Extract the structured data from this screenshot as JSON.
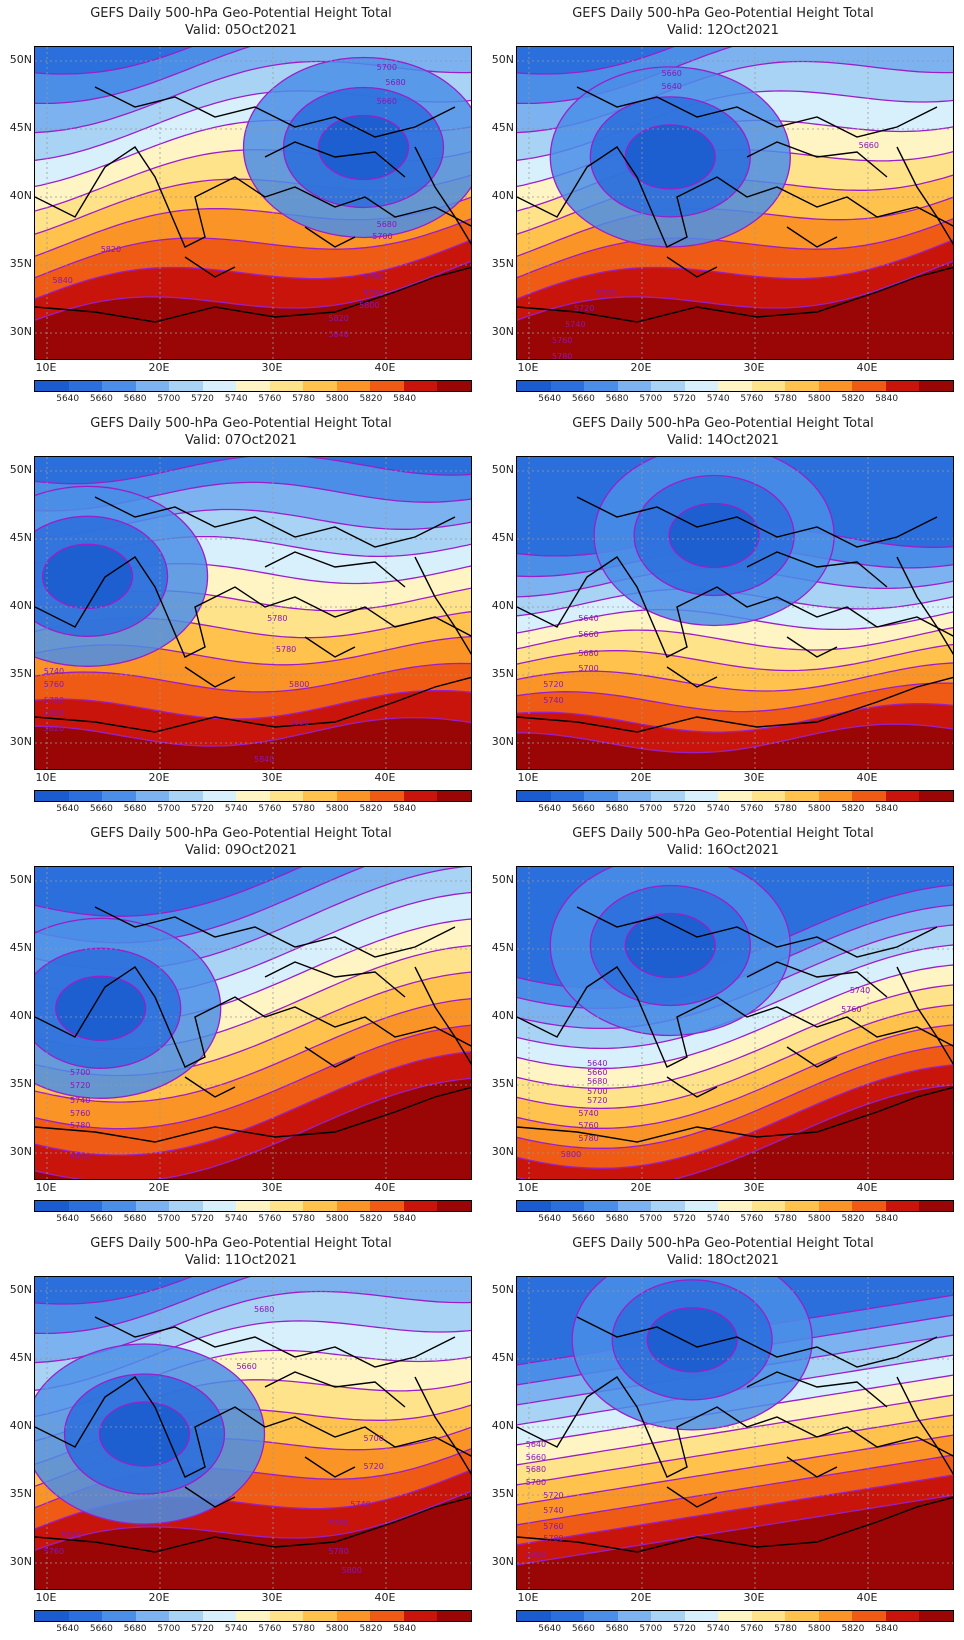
{
  "title": "GEFS Daily 500-hPa Geo-Potential Height Total",
  "valid_prefix": "Valid:",
  "lat_labels": [
    "50N",
    "45N",
    "40N",
    "35N",
    "30N"
  ],
  "lon_labels": [
    "10E",
    "20E",
    "30E",
    "40E"
  ],
  "colorbar": {
    "colors": [
      "#1a5ccf",
      "#2b6fdc",
      "#4a8ee8",
      "#7cb2ef",
      "#a9d3f4",
      "#d8f0fb",
      "#fff4c3",
      "#ffe38a",
      "#ffc24d",
      "#fb9426",
      "#ef5a14",
      "#c9140b",
      "#9a0605"
    ],
    "labels": [
      "5640",
      "5660",
      "5680",
      "5700",
      "5720",
      "5740",
      "5760",
      "5780",
      "5800",
      "5820",
      "5840"
    ]
  },
  "panels": [
    {
      "date": "05Oct2021",
      "contours": [
        "5700",
        "5680",
        "5660",
        "5680",
        "5700",
        "5760",
        "5780",
        "5800",
        "5820",
        "5840",
        "5820",
        "5840"
      ]
    },
    {
      "date": "12Oct2021",
      "contours": [
        "5660",
        "5640",
        "5660",
        "5700",
        "5720",
        "5740",
        "5760",
        "5780"
      ]
    },
    {
      "date": "07Oct2021",
      "contours": [
        "5780",
        "5780",
        "5740",
        "5760",
        "5780",
        "5800",
        "5820",
        "5800",
        "5820",
        "5840"
      ]
    },
    {
      "date": "14Oct2021",
      "contours": [
        "5640",
        "5660",
        "5680",
        "5700",
        "5720",
        "5740"
      ]
    },
    {
      "date": "09Oct2021",
      "contours": [
        "5700",
        "5720",
        "5740",
        "5760",
        "5780",
        "5820"
      ]
    },
    {
      "date": "16Oct2021",
      "contours": [
        "5740",
        "5760",
        "5640",
        "5660",
        "5680",
        "5700",
        "5720",
        "5740",
        "5760",
        "5780",
        "5800"
      ]
    },
    {
      "date": "11Oct2021",
      "contours": [
        "5680",
        "5660",
        "5700",
        "5720",
        "5740",
        "5760",
        "5780",
        "5800",
        "5760",
        "5740"
      ]
    },
    {
      "date": "18Oct2021",
      "contours": [
        "5640",
        "5660",
        "5680",
        "5700",
        "5720",
        "5740",
        "5760",
        "5780",
        "5800"
      ]
    }
  ]
}
